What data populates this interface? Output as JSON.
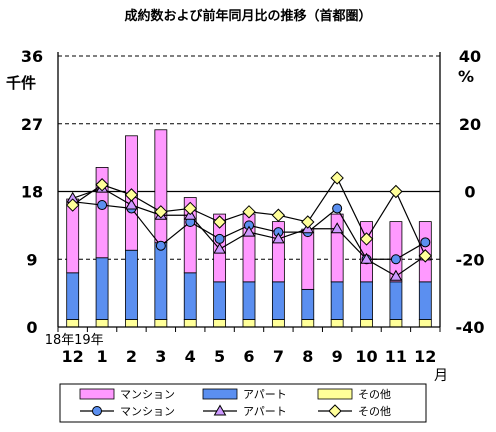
{
  "chart_data": {
    "type": "bar+line",
    "title": "成約数および前年同月比の推移（首都圏）",
    "y_left": {
      "unit_label": "千件",
      "min": 0,
      "max": 36,
      "ticks": [
        0,
        9,
        18,
        27,
        36
      ]
    },
    "y_right": {
      "unit_label": "%",
      "min": -40,
      "max": 40,
      "ticks": [
        -40,
        -20,
        0,
        20,
        40
      ]
    },
    "year_labels": [
      {
        "index": 0,
        "text": "18年"
      },
      {
        "index": 1,
        "text": "19年"
      }
    ],
    "month_unit": "月",
    "categories": [
      "12",
      "1",
      "2",
      "3",
      "4",
      "5",
      "6",
      "7",
      "8",
      "9",
      "10",
      "11",
      "12"
    ],
    "bar_series": [
      {
        "name": "その他",
        "color": "#ffff99",
        "values": [
          1.0,
          1.0,
          1.0,
          1.0,
          1.0,
          1.0,
          1.0,
          1.0,
          1.0,
          1.0,
          1.0,
          1.0,
          1.0
        ]
      },
      {
        "name": "アパート",
        "color": "#5b8ff0",
        "values": [
          6.2,
          8.2,
          9.2,
          10.2,
          6.2,
          5.0,
          5.0,
          5.0,
          4.0,
          5.0,
          5.0,
          5.0,
          5.0
        ]
      },
      {
        "name": "マンション",
        "color": "#ff99ff",
        "values": [
          9.8,
          12.0,
          15.2,
          15.0,
          10.0,
          9.0,
          9.0,
          8.0,
          8.0,
          9.0,
          8.0,
          8.0,
          8.0
        ]
      }
    ],
    "line_series": [
      {
        "name": "マンション",
        "marker": "circle",
        "color": "#5b8ff0",
        "values": [
          -3,
          -4,
          -5,
          -16,
          -9,
          -14,
          -10,
          -12,
          -12,
          -5,
          -20,
          -20,
          -15
        ]
      },
      {
        "name": "アパート",
        "marker": "triangle",
        "color": "#cc99ff",
        "values": [
          -2,
          1,
          -4,
          -7,
          -7,
          -17,
          -12,
          -14,
          -11,
          -11,
          -20,
          -25,
          -19
        ]
      },
      {
        "name": "その他",
        "marker": "diamond",
        "color": "#ffff99",
        "values": [
          -4,
          2,
          -1,
          -6,
          -5,
          -9,
          -6,
          -7,
          -9,
          4,
          -14,
          0,
          -19
        ]
      }
    ],
    "legend": {
      "bars": [
        "マンション",
        "アパート",
        "その他"
      ],
      "lines": [
        "マンション",
        "アパート",
        "その他"
      ]
    }
  }
}
